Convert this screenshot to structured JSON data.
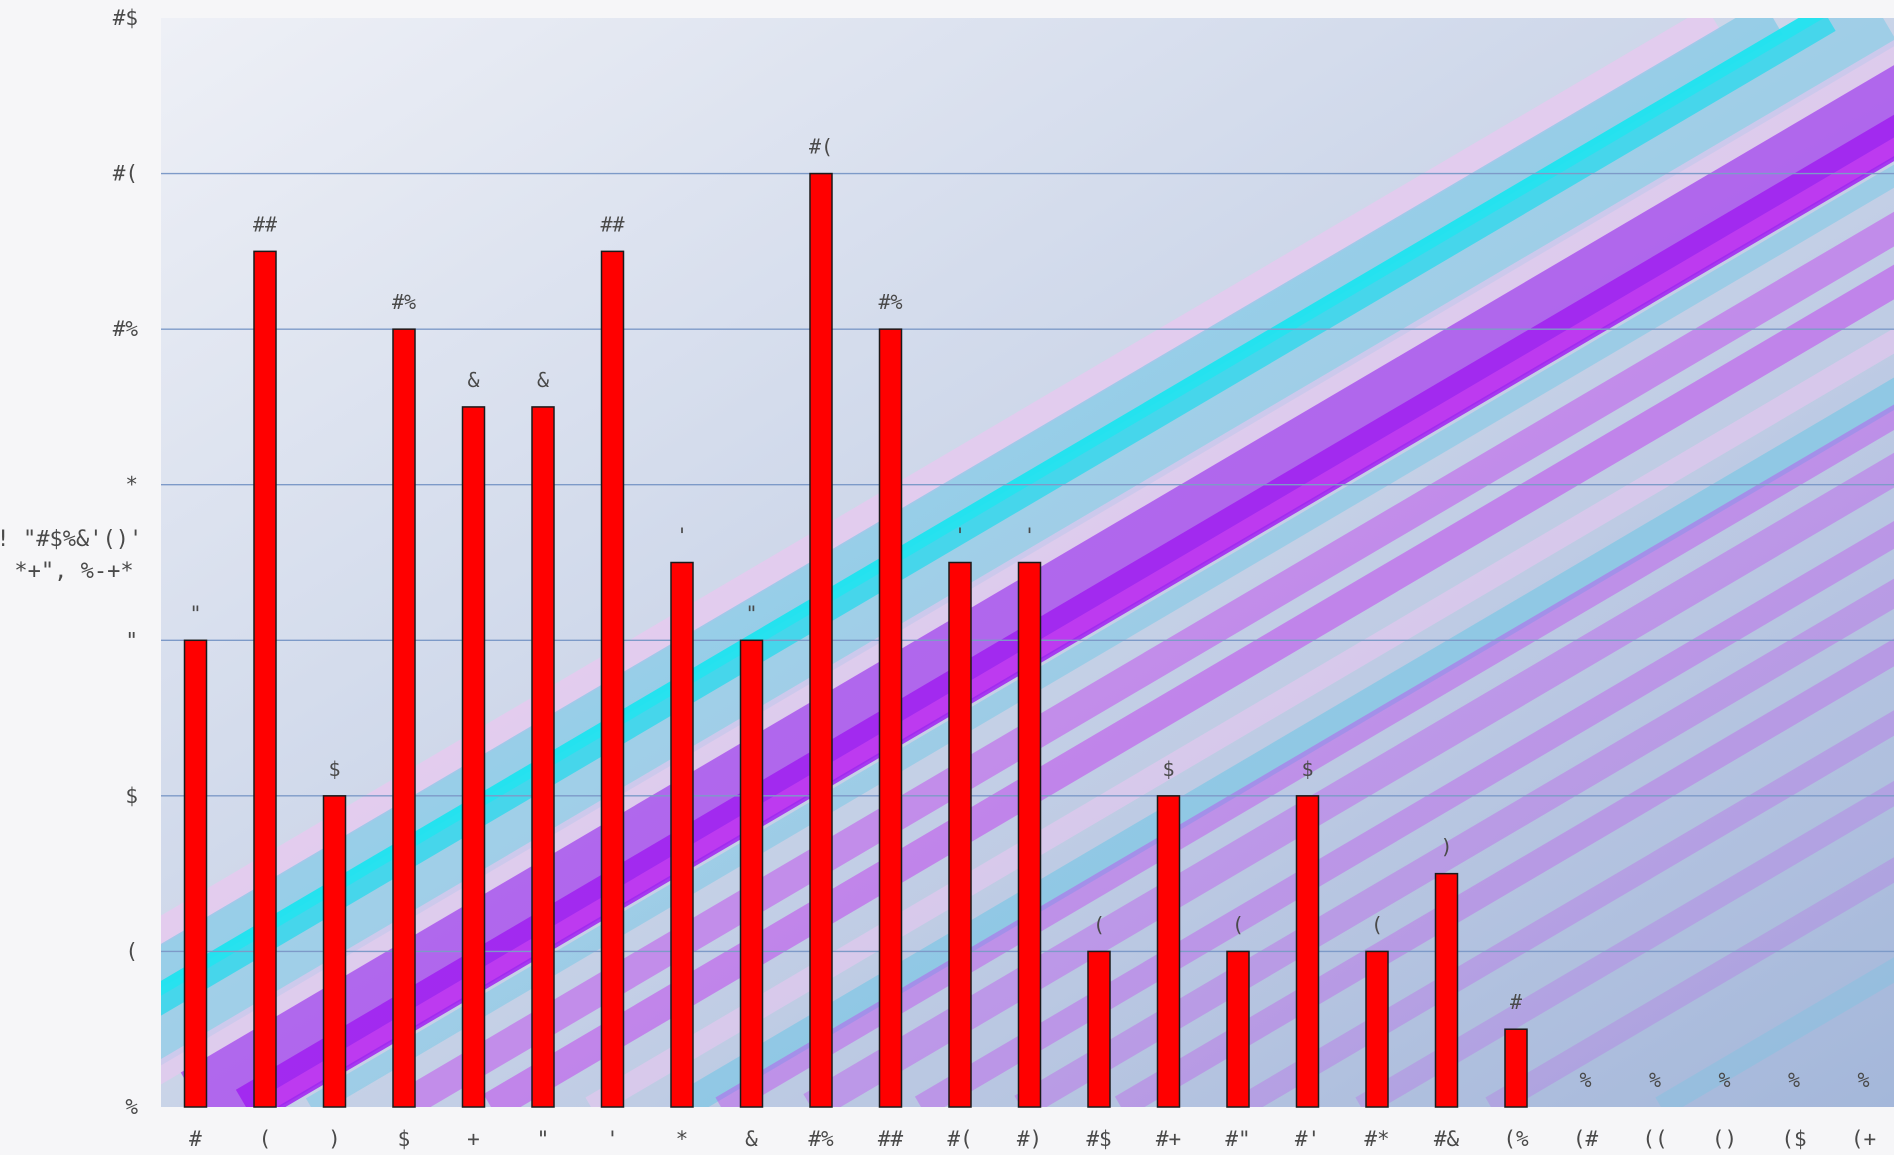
{
  "chart_data": {
    "type": "bar",
    "title": "",
    "ylabel_lines": [
      "! \"#$%&'()'",
      "*+\", %-+*"
    ],
    "ylim": [
      0,
      14
    ],
    "grid": true,
    "yticks": [
      {
        "value": 0,
        "label": "%"
      },
      {
        "value": 2,
        "label": "("
      },
      {
        "value": 4,
        "label": "$"
      },
      {
        "value": 6,
        "label": "\""
      },
      {
        "value": 8,
        "label": "*"
      },
      {
        "value": 10,
        "label": "#%"
      },
      {
        "value": 12,
        "label": "#("
      },
      {
        "value": 14,
        "label": "#$"
      }
    ],
    "categories": [
      "#",
      "(",
      ")",
      "$",
      "+",
      "\"",
      "'",
      "*",
      "&",
      "#%",
      "##",
      "#(",
      "#)",
      "#$",
      "#+",
      "#\"",
      "#'",
      "#*",
      "#&",
      "(%",
      "(#",
      "((",
      "()",
      "($",
      "(+"
    ],
    "values": [
      6,
      11,
      4,
      10,
      9,
      9,
      11,
      7,
      6,
      12,
      10,
      7,
      7,
      2,
      4,
      2,
      4,
      2,
      3,
      1,
      0,
      0,
      0,
      0,
      0
    ],
    "data_labels": [
      "\"",
      "##",
      "$",
      "#%",
      "&",
      "&",
      "##",
      "'",
      "\"",
      "#(",
      "#%",
      "'",
      "'",
      "(",
      "$",
      "(",
      "$",
      "(",
      ")",
      "#",
      "%",
      "%",
      "%",
      "%",
      "%"
    ],
    "colors": {
      "bar": "#ff0000",
      "bar_stroke": "#1a1a1a",
      "grid": "#7d9ac8",
      "bg_top_left": "#eef0f6",
      "bg_bottom_right": "#a4b7da",
      "stripe_cyan": "#1ee3ef",
      "stripe_violet": "#a020f0",
      "stripe_magenta": "#c03cf0",
      "stripe_lightblue": "#6cc7e6",
      "stripe_pink": "#ebc7f0"
    }
  }
}
